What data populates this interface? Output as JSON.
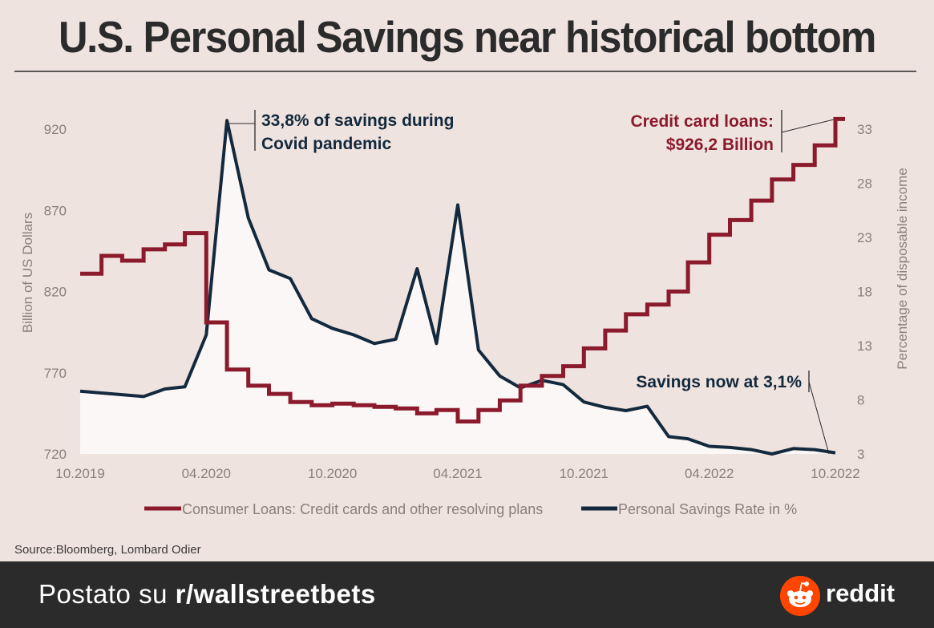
{
  "title": "U.S. Personal Savings near historical bottom",
  "source": "Source:Bloomberg, Lombard Odier",
  "footer": {
    "prefix": "Postato su ",
    "subreddit": "r/wallstreetbets",
    "brand": "reddit"
  },
  "colors": {
    "background": "#efe3df",
    "credit": "#8b1a2c",
    "savings": "#13293d",
    "area": "#fbf7f6",
    "axis_text": "#8c7f7a",
    "footer": "#2b2b2b",
    "reddit_orange": "#ff4500"
  },
  "chart_data": {
    "type": "line",
    "title": "U.S. Personal Savings near historical bottom",
    "x_ticks": [
      "10.2019",
      "04.2020",
      "10.2020",
      "04.2021",
      "10.2021",
      "04.2022",
      "10.2022"
    ],
    "y_left": {
      "label": "Billion of US Dollars",
      "ticks": [
        720,
        770,
        820,
        870,
        920
      ],
      "range": [
        720,
        920
      ]
    },
    "y_right": {
      "label": "Percentage of disposable income",
      "ticks": [
        3,
        8,
        13,
        18,
        23,
        28,
        33
      ],
      "range": [
        3,
        33
      ]
    },
    "grid": false,
    "legend_position": "bottom",
    "series": [
      {
        "name": "Consumer Loans: Credit cards and other resolving plans",
        "axis": "left",
        "color": "#8b1a2c",
        "x": [
          "2019-10-01",
          "2019-11-01",
          "2019-12-01",
          "2020-01-01",
          "2020-02-01",
          "2020-03-01",
          "2020-04-01",
          "2020-05-01",
          "2020-06-01",
          "2020-07-01",
          "2020-08-01",
          "2020-09-01",
          "2020-10-01",
          "2020-11-01",
          "2020-12-01",
          "2021-01-01",
          "2021-02-01",
          "2021-03-01",
          "2021-04-01",
          "2021-05-01",
          "2021-06-01",
          "2021-07-01",
          "2021-08-01",
          "2021-09-01",
          "2021-10-01",
          "2021-11-01",
          "2021-12-01",
          "2022-01-01",
          "2022-02-01",
          "2022-03-01",
          "2022-04-01",
          "2022-05-01",
          "2022-06-01",
          "2022-07-01",
          "2022-08-01",
          "2022-09-01",
          "2022-10-01"
        ],
        "values": [
          831,
          842,
          839,
          846,
          849,
          856,
          801,
          772,
          762,
          757,
          752,
          750,
          751,
          750,
          749,
          748,
          745,
          747,
          740,
          747,
          753,
          762,
          768,
          774,
          785,
          796,
          806,
          812,
          820,
          838,
          855,
          864,
          876,
          889,
          898,
          910,
          926.2
        ]
      },
      {
        "name": "Personal Savings Rate in %",
        "axis": "right",
        "color": "#13293d",
        "x": [
          "2019-10-01",
          "2020-01-01",
          "2020-02-01",
          "2020-03-01",
          "2020-04-01",
          "2020-05-01",
          "2020-06-01",
          "2020-07-01",
          "2020-08-01",
          "2020-09-01",
          "2020-10-01",
          "2020-11-01",
          "2020-12-01",
          "2021-01-01",
          "2021-02-01",
          "2021-03-01",
          "2021-04-01",
          "2021-05-01",
          "2021-06-01",
          "2021-07-01",
          "2021-08-01",
          "2021-09-01",
          "2021-10-01",
          "2021-11-01",
          "2021-12-01",
          "2022-01-01",
          "2022-02-01",
          "2022-03-01",
          "2022-04-01",
          "2022-05-01",
          "2022-06-01",
          "2022-07-01",
          "2022-08-01",
          "2022-09-01",
          "2022-10-01"
        ],
        "values": [
          8.8,
          8.3,
          9.0,
          9.2,
          14.0,
          33.8,
          24.8,
          20.0,
          19.2,
          15.5,
          14.6,
          14.0,
          13.2,
          13.6,
          20.1,
          13.2,
          26.0,
          12.6,
          10.2,
          9.1,
          9.8,
          9.4,
          7.8,
          7.3,
          7.0,
          7.4,
          4.6,
          4.4,
          3.7,
          3.6,
          3.4,
          3.0,
          3.5,
          3.4,
          3.1
        ]
      }
    ],
    "annotations": [
      {
        "text_lines": [
          "33,8% of savings during",
          "Covid pandemic"
        ],
        "series": "Personal Savings Rate in %",
        "x": "2020-05-01",
        "y": 33.8
      },
      {
        "text_lines": [
          "Credit card loans:",
          "$926,2 Billion"
        ],
        "series": "Consumer Loans: Credit cards and other resolving plans",
        "x": "2022-10-01",
        "y": 926.2
      },
      {
        "text_lines": [
          "Savings now at 3,1%"
        ],
        "series": "Personal Savings Rate in %",
        "x": "2022-10-01",
        "y": 3.1
      }
    ]
  }
}
